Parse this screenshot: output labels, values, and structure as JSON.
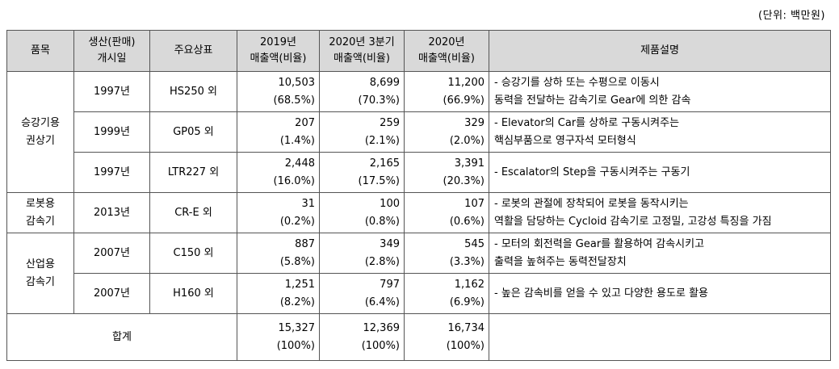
{
  "unit_label": "(단위: 백만원)",
  "headers": {
    "item": "품목",
    "start_year": [
      "생산(판매)",
      "개시일"
    ],
    "brand": "주요상표",
    "sales_2019": [
      "2019년",
      "매출액(비율)"
    ],
    "sales_2020q3": [
      "2020년 3분기",
      "매출액(비율)"
    ],
    "sales_2020": [
      "2020년",
      "매출액(비율)"
    ],
    "description": "제품설명"
  },
  "groups": [
    {
      "item": [
        "승강기용",
        "권상기"
      ],
      "rows": [
        {
          "year": "1997년",
          "brand": "HS250 외",
          "s2019": [
            "10,503",
            "(68.5%)"
          ],
          "s2020q3": [
            "8,699",
            "(70.3%)"
          ],
          "s2020": [
            "11,200",
            "(66.9%)"
          ],
          "desc": [
            "- 승강기를 상하 또는 수평으로 이동시",
            "동력을 전달하는 감속기로 Gear에 의한 감속"
          ]
        },
        {
          "year": "1999년",
          "brand": "GP05 외",
          "s2019": [
            "207",
            "(1.4%)"
          ],
          "s2020q3": [
            "259",
            "(2.1%)"
          ],
          "s2020": [
            "329",
            "(2.0%)"
          ],
          "desc": [
            "- Elevator의 Car를 상하로 구동시켜주는",
            "핵심부품으로 영구자석 모터형식"
          ]
        },
        {
          "year": "1997년",
          "brand": "LTR227 외",
          "s2019": [
            "2,448",
            "(16.0%)"
          ],
          "s2020q3": [
            "2,165",
            "(17.5%)"
          ],
          "s2020": [
            "3,391",
            "(20.3%)"
          ],
          "desc": [
            "- Escalator의 Step을 구동시켜주는 구동기"
          ]
        }
      ]
    },
    {
      "item": [
        "로봇용",
        "감속기"
      ],
      "rows": [
        {
          "year": "2013년",
          "brand": "CR-E 외",
          "s2019": [
            "31",
            "(0.2%)"
          ],
          "s2020q3": [
            "100",
            "(0.8%)"
          ],
          "s2020": [
            "107",
            "(0.6%)"
          ],
          "desc": [
            "- 로봇의 관절에 장착되어 로봇을 동작시키는",
            "역활을 담당하는 Cycloid 감속기로 고정밀, 고강성 특징을 가짐"
          ]
        }
      ]
    },
    {
      "item": [
        "산업용",
        "감속기"
      ],
      "rows": [
        {
          "year": "2007년",
          "brand": "C150 외",
          "s2019": [
            "887",
            "(5.8%)"
          ],
          "s2020q3": [
            "349",
            "(2.8%)"
          ],
          "s2020": [
            "545",
            "(3.3%)"
          ],
          "desc": [
            "- 모터의 회전력을 Gear를 활용하여 감속시키고",
            "출력을 높혀주는 동력전달장치"
          ]
        },
        {
          "year": "2007년",
          "brand": "H160 외",
          "s2019": [
            "1,251",
            "(8.2%)"
          ],
          "s2020q3": [
            "797",
            "(6.4%)"
          ],
          "s2020": [
            "1,162",
            "(6.9%)"
          ],
          "desc": [
            "- 높은 감속비를 얻을 수 있고 다양한 용도로 활용"
          ]
        }
      ]
    }
  ],
  "total": {
    "label": "합계",
    "s2019": [
      "15,327",
      "(100%)"
    ],
    "s2020q3": [
      "12,369",
      "(100%)"
    ],
    "s2020": [
      "16,734",
      "(100%)"
    ]
  }
}
